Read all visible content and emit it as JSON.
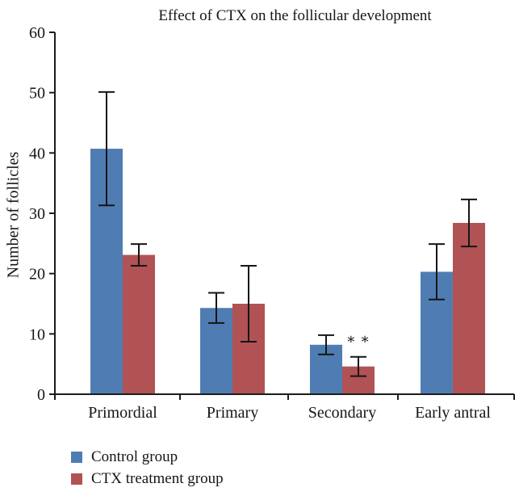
{
  "chart_data": {
    "type": "bar",
    "title": "Effect of CTX on the follicular development",
    "xlabel": "",
    "ylabel": "Number of follicles",
    "categories": [
      "Primordial",
      "Primary",
      "Secondary",
      "Early antral"
    ],
    "series": [
      {
        "name": "Control group",
        "color": "#4F7DB3",
        "values": [
          40.7,
          14.3,
          8.2,
          20.3
        ],
        "errors": [
          9.4,
          2.5,
          1.6,
          4.6
        ]
      },
      {
        "name": "CTX treatment group",
        "color": "#B15254",
        "values": [
          23.1,
          15.0,
          4.6,
          28.4
        ],
        "errors": [
          1.8,
          6.3,
          1.6,
          3.9
        ]
      }
    ],
    "ylim": [
      0,
      60
    ],
    "ytick_step": 10,
    "ytick_labels": [
      "0",
      "10",
      "20",
      "30",
      "40",
      "50",
      "60"
    ],
    "grid": false,
    "legend_position": "bottom-left",
    "error_bar_color": "#151515",
    "axis_color": "#1c1c1c",
    "annotations": [
      {
        "text": "∗∗",
        "category_index": 2,
        "series_index": 1,
        "y": 9.2
      }
    ]
  }
}
